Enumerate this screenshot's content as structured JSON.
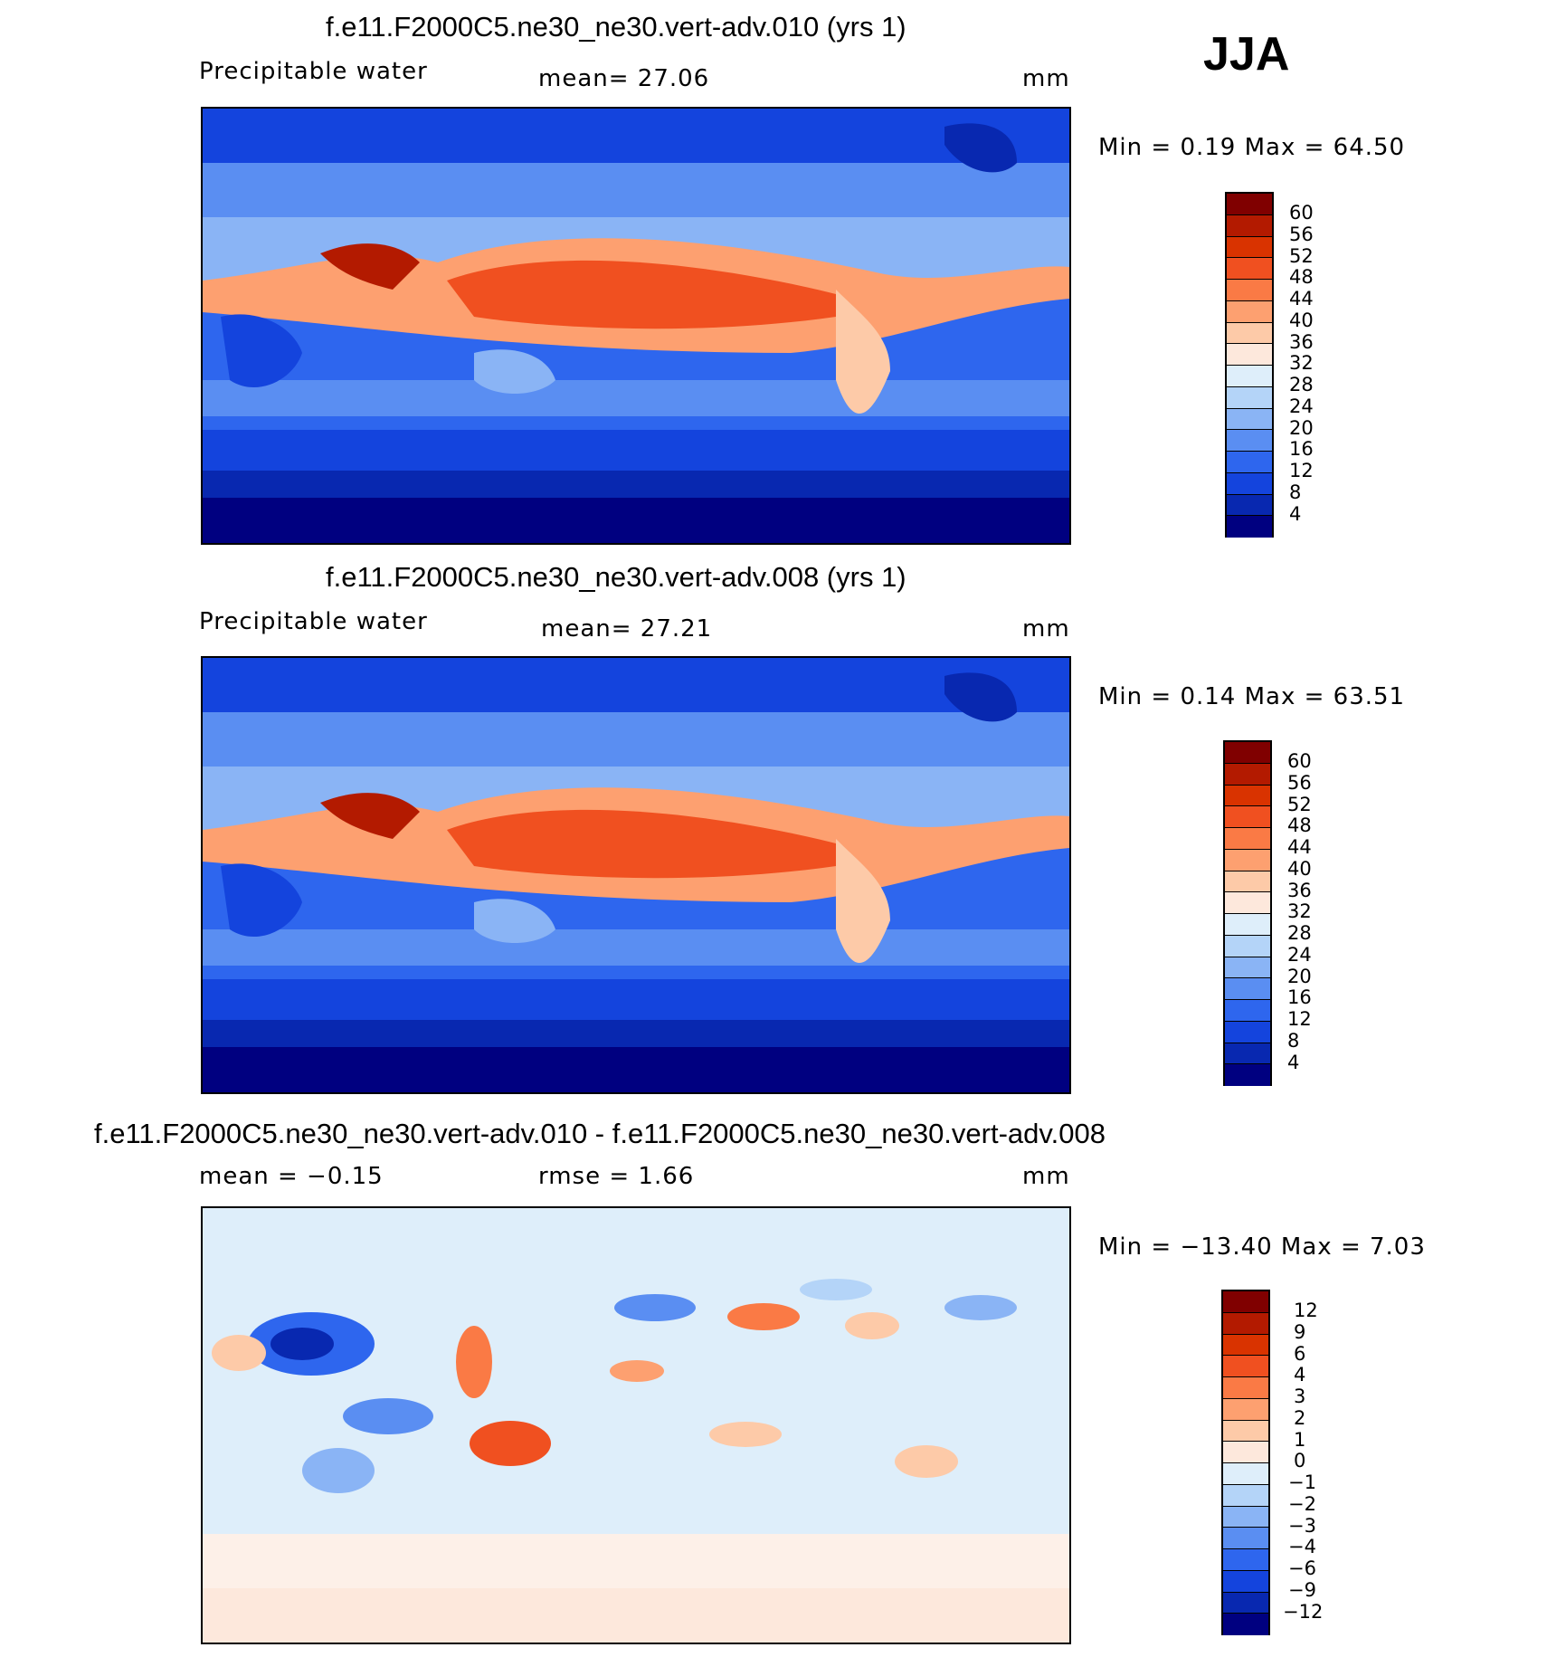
{
  "season": "JJA",
  "panels": [
    {
      "title": "f.e11.F2000C5.ne30_ne30.vert-adv.010 (yrs 1)",
      "variable": "Precipitable water",
      "stat1": "mean=   27.06",
      "stat2": "",
      "units": "mm",
      "minmax": "Min =     0.19  Max =    64.50",
      "colorbar_labels": [
        "60",
        "56",
        "52",
        "48",
        "44",
        "40",
        "36",
        "32",
        "28",
        "24",
        "20",
        "16",
        "12",
        "8",
        "4"
      ],
      "colors": [
        "#800000",
        "#b31a00",
        "#d93300",
        "#f05020",
        "#fa7a45",
        "#fda070",
        "#fdcaa8",
        "#fde8dc",
        "#deeefa",
        "#b4d4f8",
        "#8ab4f5",
        "#5a8ef2",
        "#2e66ee",
        "#1444dd",
        "#0828b0",
        "#000080"
      ]
    },
    {
      "title": "f.e11.F2000C5.ne30_ne30.vert-adv.008 (yrs 1)",
      "variable": "Precipitable water",
      "stat1": "mean=   27.21",
      "stat2": "",
      "units": "mm",
      "minmax": "Min =     0.14  Max =    63.51",
      "colorbar_labels": [
        "60",
        "56",
        "52",
        "48",
        "44",
        "40",
        "36",
        "32",
        "28",
        "24",
        "20",
        "16",
        "12",
        "8",
        "4"
      ],
      "colors": [
        "#800000",
        "#b31a00",
        "#d93300",
        "#f05020",
        "#fa7a45",
        "#fda070",
        "#fdcaa8",
        "#fde8dc",
        "#deeefa",
        "#b4d4f8",
        "#8ab4f5",
        "#5a8ef2",
        "#2e66ee",
        "#1444dd",
        "#0828b0",
        "#000080"
      ]
    },
    {
      "title": "f.e11.F2000C5.ne30_ne30.vert-adv.010 - f.e11.F2000C5.ne30_ne30.vert-adv.008",
      "variable": "mean =   −0.15",
      "stat1": "rmse =     1.66",
      "stat2": "",
      "units": "mm",
      "minmax": "Min = −13.40  Max =     7.03",
      "colorbar_labels": [
        "12",
        "9",
        "6",
        "4",
        "3",
        "2",
        "1",
        "0",
        "−1",
        "−2",
        "−3",
        "−4",
        "−6",
        "−9",
        "−12"
      ],
      "colors": [
        "#800000",
        "#b31a00",
        "#d93300",
        "#f05020",
        "#fa7a45",
        "#fda070",
        "#fdcaa8",
        "#fde8dc",
        "#deeefa",
        "#b4d4f8",
        "#8ab4f5",
        "#5a8ef2",
        "#2e66ee",
        "#1444dd",
        "#0828b0",
        "#000080"
      ]
    }
  ]
}
